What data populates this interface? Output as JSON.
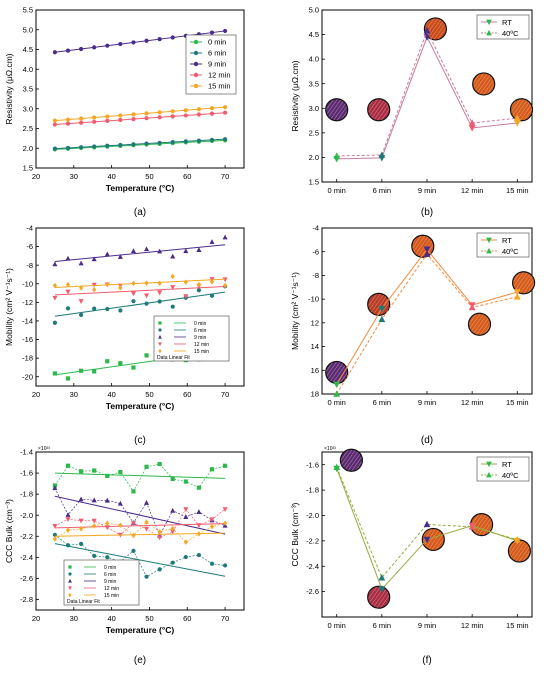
{
  "chart_data": [
    {
      "id": "a",
      "type": "line-scatter",
      "panel_label": "(a)",
      "xlabel": "Temperature (°C)",
      "ylabel": "Resistivity (μΩ.cm)",
      "xlim": [
        20,
        75
      ],
      "ylim": [
        1.5,
        5.5
      ],
      "xticks": [
        20,
        30,
        40,
        50,
        60,
        70
      ],
      "yticks": [
        1.5,
        2.0,
        2.5,
        3.0,
        3.5,
        4.0,
        4.5,
        5.0,
        5.5
      ],
      "tick_decimals": 1,
      "xticks_show": true,
      "legend_position": "top-right",
      "series": [
        {
          "name": "0 min",
          "color": "#2db84c",
          "marker": "circle",
          "x0": 25,
          "x1": 70,
          "y0": 1.97,
          "y1": 2.2
        },
        {
          "name": "6 min",
          "color": "#1e7a78",
          "marker": "circle",
          "x0": 25,
          "x1": 70,
          "y0": 1.99,
          "y1": 2.23
        },
        {
          "name": "9 min",
          "color": "#4a2c8a",
          "marker": "circle",
          "x0": 25,
          "x1": 70,
          "y0": 4.43,
          "y1": 4.97
        },
        {
          "name": "12 min",
          "color": "#f05c6e",
          "marker": "circle",
          "x0": 25,
          "x1": 70,
          "y0": 2.6,
          "y1": 2.9
        },
        {
          "name": "15 min",
          "color": "#f5a623",
          "marker": "circle",
          "x0": 25,
          "x1": 70,
          "y0": 2.7,
          "y1": 3.04
        }
      ]
    },
    {
      "id": "b",
      "type": "line",
      "panel_label": "(b)",
      "xlabel": "",
      "ylabel": "Resistivity (μΩ.cm)",
      "ylim": [
        1.5,
        5.0
      ],
      "yticks": [
        1.5,
        2.0,
        2.5,
        3.0,
        3.5,
        4.0,
        4.5,
        5.0
      ],
      "tick_decimals": 1,
      "categories": [
        "0 min",
        "6 min",
        "9 min",
        "12 min",
        "15 min"
      ],
      "legend_position": "top-right",
      "series": [
        {
          "name": "RT",
          "color": "#c97b9e",
          "values": [
            1.97,
            1.99,
            4.45,
            2.6,
            2.7
          ],
          "dash": false,
          "marker": "tri-down"
        },
        {
          "name": "40ºC",
          "color": "#c97b9e",
          "values": [
            2.03,
            2.05,
            4.58,
            2.7,
            2.8
          ],
          "dash": true,
          "marker": "tri-up"
        }
      ],
      "inset_circles": [
        {
          "cx": 0.07,
          "cy": 0.58,
          "r": 11,
          "color": "#5a2a7a"
        },
        {
          "cx": 0.27,
          "cy": 0.58,
          "r": 11,
          "color": "#a82c4a"
        },
        {
          "cx": 0.54,
          "cy": 0.11,
          "r": 11,
          "color": "#c94a1f"
        },
        {
          "cx": 0.77,
          "cy": 0.43,
          "r": 11,
          "color": "#d4581f"
        },
        {
          "cx": 0.95,
          "cy": 0.58,
          "r": 11,
          "color": "#d45a20"
        }
      ]
    },
    {
      "id": "c",
      "type": "line-scatter",
      "panel_label": "(c)",
      "xlabel": "Temperature (°C)",
      "ylabel": "Mobility (cm² V⁻¹s⁻¹)",
      "xlim": [
        20,
        75
      ],
      "ylim": [
        -21,
        -4
      ],
      "xticks": [
        20,
        30,
        40,
        50,
        60,
        70
      ],
      "yticks": [
        -20,
        -18,
        -16,
        -14,
        -12,
        -10,
        -8,
        -6,
        -4
      ],
      "tick_decimals": 0,
      "xticks_show": true,
      "legend_position": "center-right",
      "legend_footer": "Data   Linear Fit",
      "series": [
        {
          "name": "0 min",
          "color": "#2db84c",
          "marker": "square",
          "x0": 25,
          "x1": 70,
          "y0": -19.8,
          "y1": -17.2
        },
        {
          "name": "6 min",
          "color": "#1e7a78",
          "marker": "circle",
          "x0": 25,
          "x1": 70,
          "y0": -13.5,
          "y1": -10.9
        },
        {
          "name": "9 min",
          "color": "#4a2c8a",
          "marker": "tri-up",
          "x0": 25,
          "x1": 70,
          "y0": -7.6,
          "y1": -5.8
        },
        {
          "name": "12 min",
          "color": "#f05c6e",
          "marker": "tri-down",
          "x0": 25,
          "x1": 70,
          "y0": -11.2,
          "y1": -10.3
        },
        {
          "name": "15 min",
          "color": "#f5a623",
          "marker": "diamond",
          "x0": 25,
          "x1": 70,
          "y0": -10.4,
          "y1": -9.5
        }
      ]
    },
    {
      "id": "d",
      "type": "line",
      "panel_label": "(d)",
      "xlabel": "",
      "ylabel": "Mobility (cm² V⁻¹s⁻¹)",
      "ylim": [
        4,
        18
      ],
      "yticks": [
        4,
        6,
        8,
        10,
        12,
        14,
        16,
        18
      ],
      "tick_decimals": 0,
      "inverted": true,
      "tick_labels_override": [
        "-4",
        "-6",
        "-8",
        "-10",
        "12",
        "14",
        "16",
        "18"
      ],
      "categories": [
        "0 min",
        "6 min",
        "9 min",
        "12 min",
        "15 min"
      ],
      "legend_position": "top-right",
      "series": [
        {
          "name": "RT",
          "color": "#f5893a",
          "values": [
            17.2,
            10.8,
            5.8,
            10.5,
            9.4
          ],
          "dash": false,
          "marker": "tri-down"
        },
        {
          "name": "40ºC",
          "color": "#f5893a",
          "values": [
            18.0,
            11.7,
            6.2,
            10.7,
            9.8
          ],
          "dash": true,
          "marker": "tri-up"
        }
      ],
      "inset_circles": [
        {
          "cx": 0.07,
          "cy": 0.87,
          "r": 11,
          "color": "#5a2a7a"
        },
        {
          "cx": 0.27,
          "cy": 0.46,
          "r": 11,
          "color": "#b83a2a"
        },
        {
          "cx": 0.48,
          "cy": 0.11,
          "r": 11,
          "color": "#d4581f"
        },
        {
          "cx": 0.75,
          "cy": 0.58,
          "r": 11,
          "color": "#d45a20"
        },
        {
          "cx": 0.96,
          "cy": 0.33,
          "r": 11,
          "color": "#d45a20"
        }
      ]
    },
    {
      "id": "e",
      "type": "line-scatter",
      "panel_label": "(e)",
      "xlabel": "Temperature (°C)",
      "ylabel": "CCC Bulk (cm⁻³)",
      "multiplier": "×10²³",
      "xlim": [
        20,
        75
      ],
      "ylim": [
        -2.9,
        -1.4
      ],
      "xticks": [
        20,
        30,
        40,
        50,
        60,
        70
      ],
      "yticks": [
        -2.8,
        -2.6,
        -2.4,
        -2.2,
        -2.0,
        -1.8,
        -1.6,
        -1.4
      ],
      "tick_decimals": 1,
      "xticks_show": true,
      "legend_position": "bottom-center",
      "legend_footer": "Data   Linear Fit",
      "series": [
        {
          "name": "0 min",
          "color": "#2db84c",
          "marker": "square",
          "x0": 25,
          "x1": 70,
          "y0": -1.6,
          "y1": -1.65
        },
        {
          "name": "6 min",
          "color": "#1e7a78",
          "marker": "circle",
          "x0": 25,
          "x1": 70,
          "y0": -2.27,
          "y1": -2.58
        },
        {
          "name": "9 min",
          "color": "#4a2c8a",
          "marker": "tri-up",
          "x0": 25,
          "x1": 70,
          "y0": -1.82,
          "y1": -2.18
        },
        {
          "name": "12 min",
          "color": "#f05c6e",
          "marker": "tri-down",
          "x0": 25,
          "x1": 70,
          "y0": -2.12,
          "y1": -2.08
        },
        {
          "name": "15 min",
          "color": "#f5a623",
          "marker": "diamond",
          "x0": 25,
          "x1": 70,
          "y0": -2.2,
          "y1": -2.17
        }
      ]
    },
    {
      "id": "f",
      "type": "line",
      "panel_label": "(f)",
      "xlabel": "",
      "ylabel": "CCC Bulk (cm⁻³)",
      "multiplier": "×10²³",
      "ylim": [
        -2.8,
        -1.5
      ],
      "yticks": [
        -2.6,
        -2.4,
        -2.2,
        -2.0,
        -1.8,
        -1.6
      ],
      "tick_decimals": 1,
      "categories": [
        "0 min",
        "6 min",
        "9 min",
        "12 min",
        "15 min"
      ],
      "legend_position": "top-right",
      "series": [
        {
          "name": "RT",
          "color": "#9aa93e",
          "values": [
            -1.63,
            -2.58,
            -2.19,
            -2.08,
            -2.2
          ],
          "dash": false,
          "marker": "tri-down"
        },
        {
          "name": "40ºC",
          "color": "#9aa93e",
          "values": [
            -1.62,
            -2.49,
            -2.07,
            -2.09,
            -2.19
          ],
          "dash": true,
          "marker": "tri-up"
        }
      ],
      "inset_circles": [
        {
          "cx": 0.14,
          "cy": 0.05,
          "r": 11,
          "color": "#5a2a7a"
        },
        {
          "cx": 0.27,
          "cy": 0.88,
          "r": 11,
          "color": "#a82c4a"
        },
        {
          "cx": 0.53,
          "cy": 0.53,
          "r": 11,
          "color": "#d4581f"
        },
        {
          "cx": 0.76,
          "cy": 0.44,
          "r": 11,
          "color": "#d45a20"
        },
        {
          "cx": 0.94,
          "cy": 0.6,
          "r": 11,
          "color": "#d45a20"
        }
      ]
    }
  ]
}
